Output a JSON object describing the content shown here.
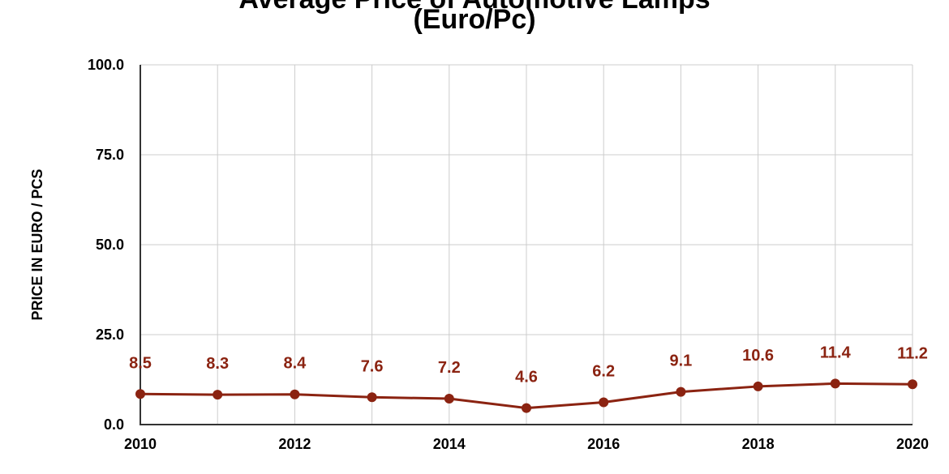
{
  "chart_data": {
    "type": "line",
    "title_line1": "Average Price of Automotive Lamps",
    "title_line2": "(Euro/Pc)",
    "xlabel": "",
    "ylabel": "PRICE IN EURO / PCS",
    "x": [
      2010,
      2011,
      2012,
      2013,
      2014,
      2015,
      2016,
      2017,
      2018,
      2019,
      2020
    ],
    "xticks": [
      "2010",
      "2012",
      "2014",
      "2016",
      "2018",
      "2020"
    ],
    "yticks": [
      "0.0",
      "25.0",
      "50.0",
      "75.0",
      "100.0"
    ],
    "series": [
      {
        "values": [
          8.5,
          8.3,
          8.4,
          7.6,
          7.2,
          4.6,
          6.2,
          9.1,
          10.6,
          11.4,
          11.2
        ],
        "labels": [
          "8.5",
          "8.3",
          "8.4",
          "7.6",
          "7.2",
          "4.6",
          "6.2",
          "9.1",
          "10.6",
          "11.4",
          "11.2"
        ],
        "color": "#8b2311"
      }
    ],
    "xlim": [
      2010,
      2020
    ],
    "ylim": [
      0,
      100
    ],
    "grid": true,
    "legend": "none",
    "gridColor": "#cccccc",
    "axisColor": "#333333"
  }
}
